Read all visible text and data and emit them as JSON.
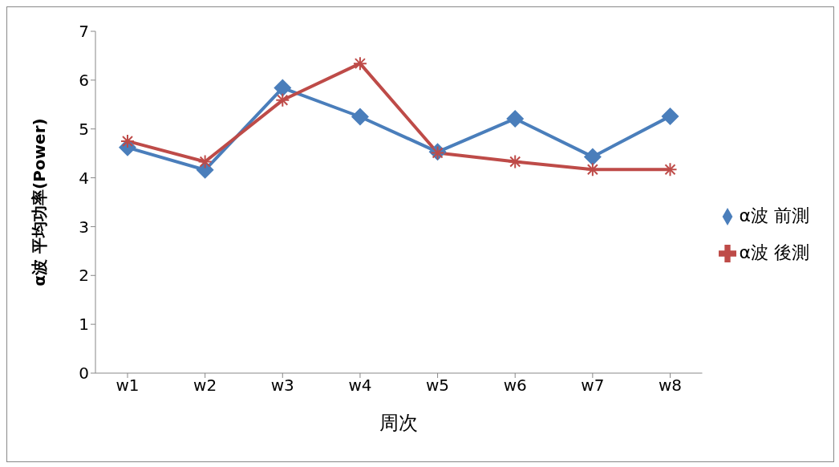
{
  "chart_data": {
    "type": "line",
    "xlabel": "周次",
    "ylabel": "α波 平均功率(Power)",
    "categories": [
      "w1",
      "w2",
      "w3",
      "w4",
      "w5",
      "w6",
      "w7",
      "w8"
    ],
    "series": [
      {
        "name": "α波 前測",
        "color": "#4a7ebb",
        "marker": "diamond",
        "values": [
          4.62,
          4.16,
          5.84,
          5.25,
          4.53,
          5.21,
          4.43,
          5.26
        ]
      },
      {
        "name": "α波 後測",
        "color": "#be4b48",
        "marker": "cross",
        "values": [
          4.75,
          4.33,
          5.59,
          6.34,
          4.51,
          4.33,
          4.17,
          4.17
        ]
      }
    ],
    "ylim": [
      0,
      7
    ],
    "yticks": [
      0,
      1,
      2,
      3,
      4,
      5,
      6,
      7
    ],
    "grid": false,
    "legend": "right"
  }
}
